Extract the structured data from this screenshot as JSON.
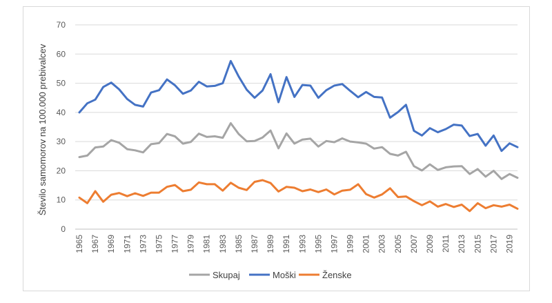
{
  "chart_data": {
    "type": "line",
    "title": "",
    "xlabel": "",
    "ylabel": "Število  samomorov na 100.000 prebivalcev",
    "ylim": [
      0,
      70
    ],
    "yticks": [
      0,
      10,
      20,
      30,
      40,
      50,
      60,
      70
    ],
    "x": [
      1965,
      1966,
      1967,
      1968,
      1969,
      1970,
      1971,
      1972,
      1973,
      1974,
      1975,
      1976,
      1977,
      1978,
      1979,
      1980,
      1981,
      1982,
      1983,
      1984,
      1985,
      1986,
      1987,
      1988,
      1989,
      1990,
      1991,
      1992,
      1993,
      1994,
      1995,
      1996,
      1997,
      1998,
      1999,
      2000,
      2001,
      2002,
      2003,
      2004,
      2005,
      2006,
      2007,
      2008,
      2009,
      2010,
      2011,
      2012,
      2013,
      2014,
      2015,
      2016,
      2017,
      2018,
      2019,
      2020
    ],
    "xtick_labels": [
      "1965",
      "1967",
      "1969",
      "1971",
      "1973",
      "1975",
      "1977",
      "1979",
      "1981",
      "1983",
      "1985",
      "1987",
      "1989",
      "1991",
      "1993",
      "1995",
      "1997",
      "1999",
      "2001",
      "2003",
      "2005",
      "2007",
      "2009",
      "2011",
      "2013",
      "2015",
      "2017",
      "2019"
    ],
    "grid": "horizontal",
    "legend": "bottom",
    "series": [
      {
        "name": "Skupaj",
        "color": "#a5a5a5",
        "values": [
          24.7,
          25.2,
          28.0,
          28.3,
          30.5,
          29.6,
          27.4,
          27.0,
          26.3,
          29.1,
          29.5,
          32.6,
          31.8,
          29.3,
          29.9,
          32.7,
          31.6,
          31.8,
          31.3,
          36.3,
          32.6,
          30.1,
          30.2,
          31.4,
          33.8,
          27.7,
          32.8,
          29.3,
          30.7,
          31.0,
          28.3,
          30.2,
          29.8,
          31.1,
          30.0,
          29.7,
          29.3,
          27.6,
          28.1,
          25.8,
          25.2,
          26.5,
          21.6,
          20.1,
          22.2,
          20.3,
          21.2,
          21.5,
          21.6,
          18.9,
          20.6,
          18.0,
          20.0,
          17.2,
          18.9,
          17.6
        ]
      },
      {
        "name": "Moški",
        "color": "#4472c4",
        "values": [
          40.0,
          43.1,
          44.4,
          48.7,
          50.2,
          47.9,
          44.6,
          42.6,
          42.0,
          46.8,
          47.6,
          51.3,
          49.3,
          46.4,
          47.5,
          50.5,
          48.9,
          49.1,
          50.0,
          57.6,
          52.3,
          47.8,
          45.0,
          47.5,
          53.1,
          43.5,
          52.1,
          45.3,
          49.4,
          49.2,
          45.0,
          47.6,
          49.2,
          49.7,
          47.4,
          45.2,
          47.0,
          45.3,
          45.1,
          38.2,
          40.1,
          42.6,
          33.7,
          32.1,
          34.6,
          33.2,
          34.3,
          35.8,
          35.5,
          31.9,
          32.6,
          28.6,
          32.1,
          26.8,
          29.4,
          28.1
        ]
      },
      {
        "name": "Ženske",
        "color": "#ed7d31",
        "values": [
          10.8,
          8.9,
          13.0,
          9.4,
          11.8,
          12.4,
          11.3,
          12.3,
          11.4,
          12.5,
          12.5,
          14.5,
          15.1,
          13.0,
          13.5,
          16.0,
          15.4,
          15.4,
          13.2,
          15.9,
          14.2,
          13.4,
          16.2,
          16.8,
          15.8,
          12.9,
          14.5,
          14.2,
          13.0,
          13.6,
          12.7,
          13.6,
          11.9,
          13.2,
          13.5,
          15.4,
          12.0,
          10.8,
          11.9,
          14.0,
          11.0,
          11.2,
          9.6,
          8.2,
          9.5,
          7.7,
          8.6,
          7.6,
          8.4,
          6.2,
          8.9,
          7.2,
          8.2,
          7.7,
          8.4,
          7.0
        ]
      }
    ]
  }
}
